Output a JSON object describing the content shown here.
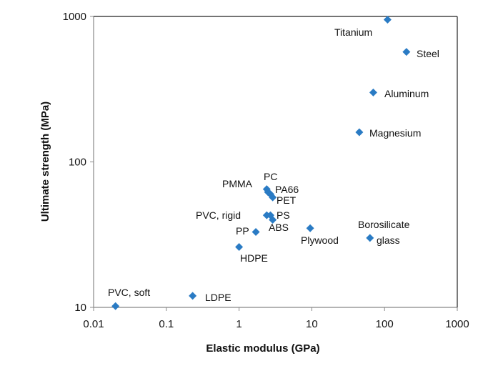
{
  "chart_data": {
    "type": "scatter",
    "title": "",
    "xlabel": "Elastic modulus (GPa)",
    "ylabel": "Ultimate strength (MPa)",
    "xscale": "log",
    "yscale": "log",
    "xlim": [
      0.01,
      1000
    ],
    "ylim": [
      10,
      1000
    ],
    "xticks": [
      "0.01",
      "0.1",
      "1",
      "10",
      "100",
      "1000"
    ],
    "yticks": [
      "10",
      "100",
      "1000"
    ],
    "grid": false,
    "legend": "none",
    "marker_color": "#2a7bc4",
    "points": [
      {
        "label": "Titanium",
        "x": 110,
        "y": 950
      },
      {
        "label": "Steel",
        "x": 200,
        "y": 570
      },
      {
        "label": "Aluminum",
        "x": 70,
        "y": 300
      },
      {
        "label": "Magnesium",
        "x": 45,
        "y": 160
      },
      {
        "label": "Borosilicate glass",
        "x": 63,
        "y": 30
      },
      {
        "label": "Plywood",
        "x": 9.5,
        "y": 35
      },
      {
        "label": "PMMA",
        "x": 2.4,
        "y": 65
      },
      {
        "label": "PC",
        "x": 2.5,
        "y": 62
      },
      {
        "label": "PA66",
        "x": 2.7,
        "y": 60
      },
      {
        "label": "PET",
        "x": 2.9,
        "y": 57
      },
      {
        "label": "PVC, rigid",
        "x": 2.4,
        "y": 43
      },
      {
        "label": "PS",
        "x": 2.7,
        "y": 43
      },
      {
        "label": "ABS",
        "x": 2.9,
        "y": 40
      },
      {
        "label": "PP",
        "x": 1.7,
        "y": 33
      },
      {
        "label": "HDPE",
        "x": 1.0,
        "y": 26
      },
      {
        "label": "LDPE",
        "x": 0.23,
        "y": 12
      },
      {
        "label": "PVC, soft",
        "x": 0.02,
        "y": 10.2
      }
    ]
  }
}
